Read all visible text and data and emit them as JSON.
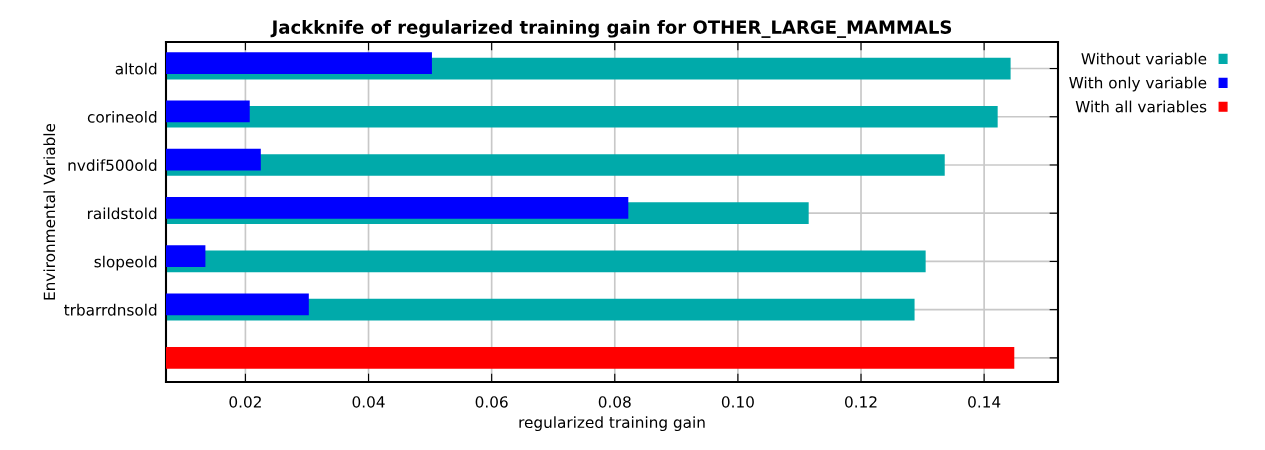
{
  "chart_data": {
    "type": "bar",
    "orientation": "horizontal",
    "title": "Jackknife of regularized training gain for OTHER_LARGE_MAMMALS",
    "xlabel": "regularized training gain",
    "ylabel": "Environmental Variable",
    "categories": [
      "altold",
      "corineold",
      "nvdif500old",
      "raildstold",
      "slopeold",
      "trbarrdnsold",
      null
    ],
    "series": [
      {
        "name": "Without variable",
        "color": "#00aaaa",
        "values": [
          0.1443,
          0.1422,
          0.1336,
          0.1115,
          0.1305,
          0.1287,
          null
        ]
      },
      {
        "name": "With only variable",
        "color": "#0000ff",
        "values": [
          0.0503,
          0.0207,
          0.0225,
          0.0822,
          0.0135,
          0.0303,
          null
        ]
      },
      {
        "name": "With all variables",
        "color": "#ff0000",
        "values": [
          null,
          null,
          null,
          null,
          null,
          null,
          0.1449
        ]
      }
    ],
    "xlim": [
      0.0071,
      0.152
    ],
    "xticks": [
      {
        "value": 0.02,
        "label": "0.02"
      },
      {
        "value": 0.04,
        "label": "0.04"
      },
      {
        "value": 0.06,
        "label": "0.06"
      },
      {
        "value": 0.08,
        "label": "0.08"
      },
      {
        "value": 0.1,
        "label": "0.10"
      },
      {
        "value": 0.12,
        "label": "0.12"
      },
      {
        "value": 0.14,
        "label": "0.14"
      }
    ],
    "grid": true,
    "legend": "top right"
  }
}
